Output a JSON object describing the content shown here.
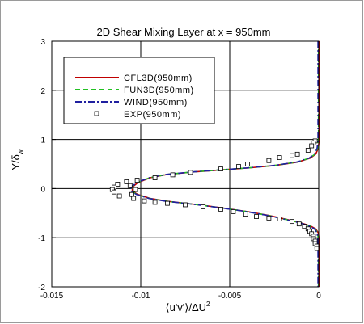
{
  "chart_data": {
    "type": "line",
    "title": "2D Shear Mixing Layer at x = 950mm",
    "xlabel": "⟨u'v'⟩/ΔU",
    "xlabel_exp": "2",
    "ylabel": "Y/δ",
    "ylabel_sub": "w",
    "xlim": [
      -0.015,
      0
    ],
    "ylim": [
      -2,
      3
    ],
    "xticks": [
      -0.015,
      -0.01,
      -0.005,
      0
    ],
    "xtick_labels": [
      "-0.015",
      "-0.01",
      "-0.005",
      "0"
    ],
    "yticks": [
      -2,
      -1,
      0,
      1,
      2,
      3
    ],
    "ytick_labels": [
      "-2",
      "-1",
      "0",
      "1",
      "2",
      "3"
    ],
    "grid": true,
    "legend_position": "top-left",
    "colors": {
      "cfl3d": "#c00000",
      "fun3d": "#22c022",
      "wind": "#2020a0",
      "exp": "#000000"
    },
    "series": [
      {
        "name": "CFL3D(950mm)",
        "style": "solid",
        "color": "#c00000",
        "points": [
          [
            0,
            3
          ],
          [
            0,
            2.5
          ],
          [
            0,
            2
          ],
          [
            0,
            1.5
          ],
          [
            0,
            1.0
          ],
          [
            -5e-05,
            0.82
          ],
          [
            -0.0002,
            0.7
          ],
          [
            -0.0005,
            0.62
          ],
          [
            -0.0012,
            0.54
          ],
          [
            -0.0025,
            0.47
          ],
          [
            -0.004,
            0.42
          ],
          [
            -0.0055,
            0.38
          ],
          [
            -0.007,
            0.34
          ],
          [
            -0.0085,
            0.29
          ],
          [
            -0.0095,
            0.22
          ],
          [
            -0.0102,
            0.12
          ],
          [
            -0.0105,
            0.03
          ],
          [
            -0.0105,
            -0.05
          ],
          [
            -0.0102,
            -0.12
          ],
          [
            -0.0095,
            -0.2
          ],
          [
            -0.0085,
            -0.26
          ],
          [
            -0.007,
            -0.32
          ],
          [
            -0.0055,
            -0.39
          ],
          [
            -0.004,
            -0.47
          ],
          [
            -0.0028,
            -0.55
          ],
          [
            -0.0018,
            -0.63
          ],
          [
            -0.001,
            -0.7
          ],
          [
            -0.0005,
            -0.76
          ],
          [
            -0.0002,
            -0.82
          ],
          [
            -5e-05,
            -0.9
          ],
          [
            0,
            -1.05
          ],
          [
            0,
            -1.5
          ],
          [
            0,
            -2
          ]
        ]
      },
      {
        "name": "FUN3D(950mm)",
        "style": "dashed",
        "color": "#22c022",
        "points": [
          [
            0,
            3
          ],
          [
            0,
            2.5
          ],
          [
            0,
            2
          ],
          [
            0,
            1.5
          ],
          [
            0,
            1.0
          ],
          [
            -5e-05,
            0.82
          ],
          [
            -0.0002,
            0.7
          ],
          [
            -0.0005,
            0.62
          ],
          [
            -0.0012,
            0.54
          ],
          [
            -0.0025,
            0.47
          ],
          [
            -0.004,
            0.42
          ],
          [
            -0.0055,
            0.38
          ],
          [
            -0.007,
            0.34
          ],
          [
            -0.0085,
            0.29
          ],
          [
            -0.0095,
            0.22
          ],
          [
            -0.0102,
            0.12
          ],
          [
            -0.0105,
            0.03
          ],
          [
            -0.0105,
            -0.05
          ],
          [
            -0.0102,
            -0.12
          ],
          [
            -0.0095,
            -0.2
          ],
          [
            -0.0085,
            -0.26
          ],
          [
            -0.007,
            -0.32
          ],
          [
            -0.0055,
            -0.39
          ],
          [
            -0.004,
            -0.47
          ],
          [
            -0.0028,
            -0.55
          ],
          [
            -0.0018,
            -0.63
          ],
          [
            -0.001,
            -0.7
          ],
          [
            -0.0005,
            -0.76
          ],
          [
            -0.0002,
            -0.82
          ],
          [
            -5e-05,
            -0.9
          ],
          [
            0,
            -1.05
          ],
          [
            0,
            -1.5
          ],
          [
            0,
            -2
          ]
        ]
      },
      {
        "name": "WIND(950mm)",
        "style": "dashdot",
        "color": "#2020a0",
        "points": [
          [
            0,
            3
          ],
          [
            0,
            2.5
          ],
          [
            0,
            2
          ],
          [
            0,
            1.5
          ],
          [
            0,
            1.0
          ],
          [
            -5e-05,
            0.82
          ],
          [
            -0.0002,
            0.7
          ],
          [
            -0.0005,
            0.62
          ],
          [
            -0.0012,
            0.54
          ],
          [
            -0.0025,
            0.47
          ],
          [
            -0.004,
            0.42
          ],
          [
            -0.0055,
            0.38
          ],
          [
            -0.007,
            0.34
          ],
          [
            -0.0085,
            0.29
          ],
          [
            -0.0095,
            0.22
          ],
          [
            -0.0102,
            0.12
          ],
          [
            -0.0105,
            0.03
          ],
          [
            -0.0105,
            -0.05
          ],
          [
            -0.0102,
            -0.12
          ],
          [
            -0.0095,
            -0.2
          ],
          [
            -0.0085,
            -0.26
          ],
          [
            -0.007,
            -0.32
          ],
          [
            -0.0055,
            -0.39
          ],
          [
            -0.004,
            -0.47
          ],
          [
            -0.0028,
            -0.55
          ],
          [
            -0.0018,
            -0.63
          ],
          [
            -0.001,
            -0.7
          ],
          [
            -0.0005,
            -0.76
          ],
          [
            -0.0002,
            -0.82
          ],
          [
            -5e-05,
            -0.9
          ],
          [
            0,
            -1.05
          ],
          [
            0,
            -1.5
          ],
          [
            0,
            -2
          ]
        ]
      },
      {
        "name": "EXP(950mm)",
        "style": "markers",
        "color": "#000000",
        "points": [
          [
            -0.0002,
            0.97
          ],
          [
            -0.0003,
            0.93
          ],
          [
            -0.0004,
            0.87
          ],
          [
            -0.0006,
            0.78
          ],
          [
            -0.0012,
            0.7
          ],
          [
            -0.0015,
            0.67
          ],
          [
            -0.0022,
            0.63
          ],
          [
            -0.0028,
            0.57
          ],
          [
            -0.004,
            0.5
          ],
          [
            -0.0045,
            0.45
          ],
          [
            -0.0055,
            0.4
          ],
          [
            -0.0072,
            0.33
          ],
          [
            -0.0082,
            0.28
          ],
          [
            -0.0092,
            0.22
          ],
          [
            -0.0102,
            0.17
          ],
          [
            -0.0108,
            0.14
          ],
          [
            -0.0113,
            0.09
          ],
          [
            -0.0115,
            0.03
          ],
          [
            -0.0116,
            -0.02
          ],
          [
            -0.0115,
            -0.07
          ],
          [
            -0.0112,
            -0.15
          ],
          [
            -0.0105,
            -0.12
          ],
          [
            -0.0103,
            -0.02
          ],
          [
            -0.0106,
            0.06
          ],
          [
            -0.0104,
            -0.2
          ],
          [
            -0.0098,
            -0.25
          ],
          [
            -0.0092,
            -0.28
          ],
          [
            -0.0085,
            -0.3
          ],
          [
            -0.0075,
            -0.33
          ],
          [
            -0.0065,
            -0.37
          ],
          [
            -0.0055,
            -0.42
          ],
          [
            -0.0048,
            -0.47
          ],
          [
            -0.0041,
            -0.52
          ],
          [
            -0.0035,
            -0.57
          ],
          [
            -0.0028,
            -0.6
          ],
          [
            -0.0022,
            -0.62
          ],
          [
            -0.0015,
            -0.67
          ],
          [
            -0.0011,
            -0.72
          ],
          [
            -0.0008,
            -0.77
          ],
          [
            -0.0006,
            -0.82
          ],
          [
            -0.0005,
            -0.87
          ],
          [
            -0.0004,
            -0.92
          ],
          [
            -0.0003,
            -0.97
          ],
          [
            -0.0003,
            -1.02
          ],
          [
            -0.0002,
            -1.07
          ],
          [
            -0.0002,
            -1.12
          ],
          [
            -0.0001,
            -1.17
          ],
          [
            -0.0001,
            -1.22
          ]
        ]
      }
    ]
  }
}
